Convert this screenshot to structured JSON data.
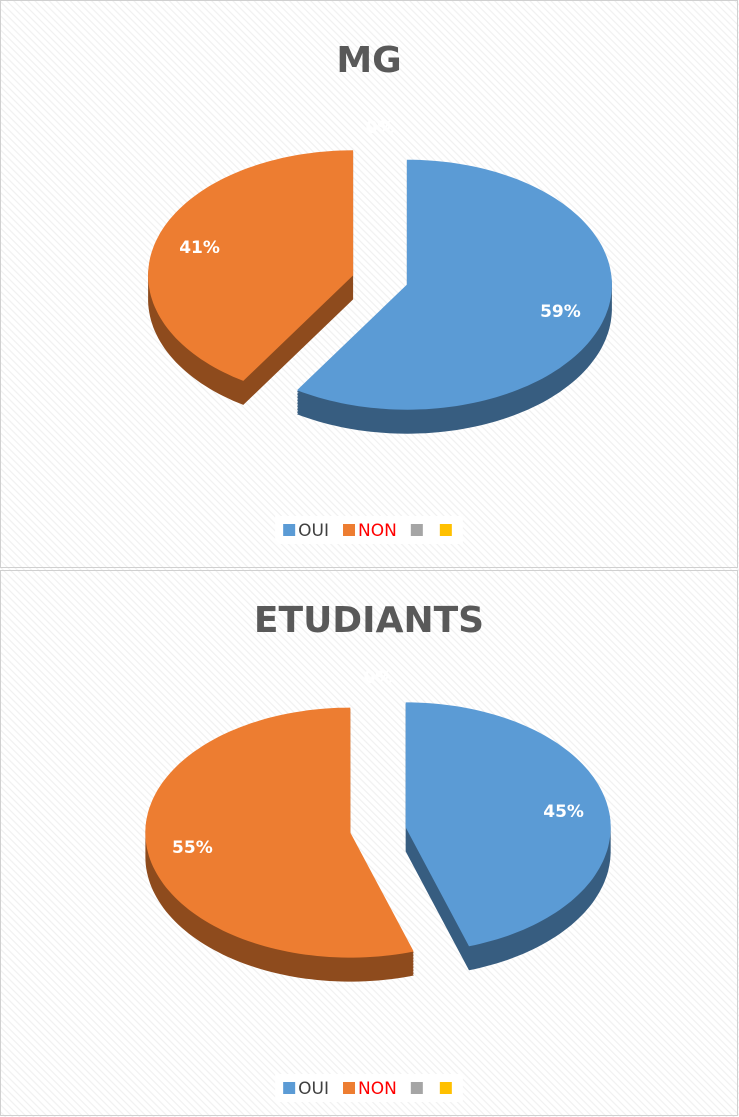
{
  "chart_data": [
    {
      "type": "pie",
      "title": "MG",
      "categories": [
        "OUI",
        "NON",
        null,
        null
      ],
      "values": [
        59,
        41,
        0,
        0
      ],
      "value_labels": [
        "59%",
        "41%",
        "0%",
        "0%"
      ],
      "colors": [
        "#5b9bd5",
        "#ed7d31",
        "#a5a5a5",
        "#ffc000"
      ],
      "legend_text_colors": [
        "#404040",
        "#ff0000",
        "#404040",
        "#404040"
      ],
      "legend": "bottom"
    },
    {
      "type": "pie",
      "title": "ETUDIANTS",
      "categories": [
        "OUI",
        "NON",
        null,
        null
      ],
      "values": [
        45,
        55,
        0,
        0
      ],
      "value_labels": [
        "45%",
        "55%",
        "0%",
        "0%"
      ],
      "colors": [
        "#5b9bd5",
        "#ed7d31",
        "#a5a5a5",
        "#ffc000"
      ],
      "legend_text_colors": [
        "#404040",
        "#ff0000",
        "#404040",
        "#404040"
      ],
      "legend": "bottom"
    }
  ]
}
